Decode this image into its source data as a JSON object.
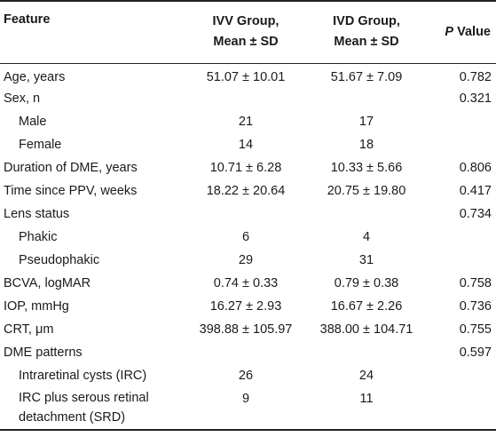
{
  "table": {
    "headers": {
      "feature": "Feature",
      "ivv_line1": "IVV Group,",
      "ivv_line2": "Mean ± SD",
      "ivd_line1": "IVD Group,",
      "ivd_line2": "Mean ± SD",
      "p_italic": "P",
      "p_rest": " Value"
    },
    "rows": [
      {
        "feature": "Age, years",
        "ivv": "51.07 ± 10.01",
        "ivd": "51.67 ± 7.09",
        "p": "0.782"
      },
      {
        "feature": "Sex, n",
        "ivv": "",
        "ivd": "",
        "p": "0.321"
      },
      {
        "feature": "Male",
        "ivv": "21",
        "ivd": "17",
        "p": ""
      },
      {
        "feature": "Female",
        "ivv": "14",
        "ivd": "18",
        "p": ""
      },
      {
        "feature": "Duration of DME, years",
        "ivv": "10.71 ± 6.28",
        "ivd": "10.33 ± 5.66",
        "p": "0.806"
      },
      {
        "feature": "Time since PPV, weeks",
        "ivv": "18.22 ± 20.64",
        "ivd": "20.75 ± 19.80",
        "p": "0.417"
      },
      {
        "feature": "Lens status",
        "ivv": "",
        "ivd": "",
        "p": "0.734"
      },
      {
        "feature": "Phakic",
        "ivv": "6",
        "ivd": "4",
        "p": ""
      },
      {
        "feature": "Pseudophakic",
        "ivv": "29",
        "ivd": "31",
        "p": ""
      },
      {
        "feature": "BCVA, logMAR",
        "ivv": "0.74 ± 0.33",
        "ivd": "0.79 ± 0.38",
        "p": "0.758"
      },
      {
        "feature": "IOP, mmHg",
        "ivv": "16.27 ± 2.93",
        "ivd": "16.67 ± 2.26",
        "p": "0.736"
      },
      {
        "feature": "CRT, μm",
        "ivv": "398.88 ± 105.97",
        "ivd": "388.00 ± 104.71",
        "p": "0.755"
      },
      {
        "feature": "DME patterns",
        "ivv": "",
        "ivd": "",
        "p": "0.597"
      },
      {
        "feature": "Intraretinal cysts (IRC)",
        "ivv": "26",
        "ivd": "24",
        "p": ""
      },
      {
        "feature": "IRC plus serous retinal detachment (SRD)",
        "ivv": "9",
        "ivd": "11",
        "p": ""
      }
    ]
  }
}
